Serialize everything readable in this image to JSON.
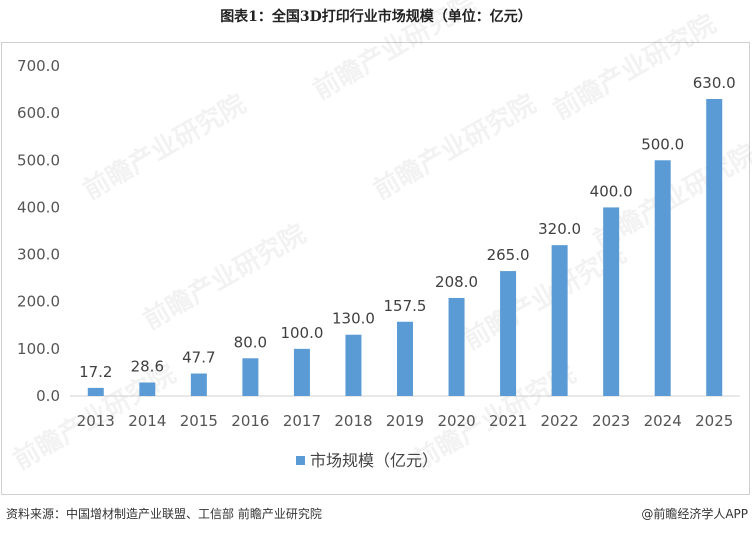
{
  "title": "图表1：全国3D打印行业市场规模（单位：亿元）",
  "footer": {
    "source": "资料来源：中国增材制造产业联盟、工信部  前瞻产业研究院",
    "brand": "@前瞻经济学人APP"
  },
  "watermark_text": "前瞻产业研究院",
  "chart_data": {
    "type": "bar",
    "categories": [
      "2013",
      "2014",
      "2015",
      "2016",
      "2017",
      "2018",
      "2019",
      "2020",
      "2021",
      "2022",
      "2023",
      "2024",
      "2025"
    ],
    "series": [
      {
        "name": "市场规模（亿元）",
        "values": [
          17.2,
          28.6,
          47.7,
          80.0,
          100.0,
          130.0,
          157.5,
          208.0,
          265.0,
          320.0,
          400.0,
          500.0,
          630.0
        ]
      }
    ],
    "data_labels": [
      "17.2",
      "28.6",
      "47.7",
      "80.0",
      "100.0",
      "130.0",
      "157.5",
      "208.0",
      "265.0",
      "320.0",
      "400.0",
      "500.0",
      "630.0"
    ],
    "yticks": [
      "0.0",
      "100.0",
      "200.0",
      "300.0",
      "400.0",
      "500.0",
      "600.0",
      "700.0"
    ],
    "ylim": [
      0,
      700
    ],
    "bar_color": "#5b9bd5",
    "grid": false,
    "legend": "bottom"
  }
}
